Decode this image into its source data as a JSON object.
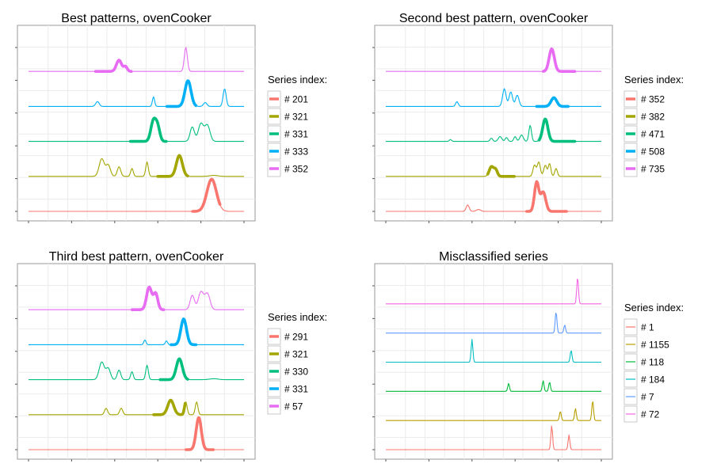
{
  "chart_data": [
    {
      "type": "line",
      "title": "Best patterns, ovenCooker",
      "legend": {
        "title": "Series index:",
        "placement": "right"
      },
      "grid": true,
      "series": [
        {
          "name": "# 201",
          "color": "#F8766D",
          "thick": true,
          "peaks": [
            [
              0.85,
              1.0,
              0.022
            ]
          ],
          "highlight": [
            0.76,
            0.89
          ]
        },
        {
          "name": "# 321",
          "color": "#A3A500",
          "thick": true,
          "peaks": [
            [
              0.34,
              0.55,
              0.012
            ],
            [
              0.37,
              0.35,
              0.01
            ],
            [
              0.42,
              0.3,
              0.008
            ],
            [
              0.48,
              0.25,
              0.006
            ],
            [
              0.55,
              0.45,
              0.006
            ],
            [
              0.7,
              0.65,
              0.014
            ],
            [
              0.86,
              0.03,
              0.02
            ]
          ],
          "highlight": [
            0.6,
            0.74
          ]
        },
        {
          "name": "# 331",
          "color": "#00BF7D",
          "thick": true,
          "peaks": [
            [
              0.58,
              0.65,
              0.012
            ],
            [
              0.6,
              0.4,
              0.01
            ],
            [
              0.76,
              0.45,
              0.01
            ],
            [
              0.8,
              0.55,
              0.012
            ],
            [
              0.83,
              0.5,
              0.012
            ]
          ],
          "highlight": [
            0.47,
            0.64
          ]
        },
        {
          "name": "# 333",
          "color": "#00B0F6",
          "thick": true,
          "peaks": [
            [
              0.32,
              0.15,
              0.008
            ],
            [
              0.58,
              0.3,
              0.005
            ],
            [
              0.74,
              0.8,
              0.014
            ],
            [
              0.82,
              0.12,
              0.008
            ],
            [
              0.91,
              0.55,
              0.007
            ]
          ],
          "highlight": [
            0.64,
            0.78
          ]
        },
        {
          "name": "# 352",
          "color": "#E76BF3",
          "thick": true,
          "peaks": [
            [
              0.42,
              0.35,
              0.012
            ],
            [
              0.45,
              0.15,
              0.008
            ],
            [
              0.73,
              0.75,
              0.007
            ]
          ],
          "highlight": [
            0.31,
            0.48
          ]
        }
      ]
    },
    {
      "type": "line",
      "title": "Second best pattern, ovenCooker",
      "legend": {
        "title": "Series index:",
        "placement": "right"
      },
      "grid": true,
      "series": [
        {
          "name": "# 352",
          "color": "#F8766D",
          "thick": true,
          "peaks": [
            [
              0.38,
              0.2,
              0.007
            ],
            [
              0.43,
              0.06,
              0.01
            ],
            [
              0.7,
              0.9,
              0.01
            ],
            [
              0.73,
              0.6,
              0.012
            ]
          ],
          "highlight": [
            0.65,
            0.84
          ]
        },
        {
          "name": "# 382",
          "color": "#A3A500",
          "thick": true,
          "peaks": [
            [
              0.49,
              0.3,
              0.01
            ],
            [
              0.51,
              0.2,
              0.008
            ],
            [
              0.69,
              0.35,
              0.007
            ],
            [
              0.71,
              0.45,
              0.007
            ],
            [
              0.74,
              0.35,
              0.007
            ],
            [
              0.76,
              0.4,
              0.006
            ],
            [
              0.79,
              0.25,
              0.006
            ]
          ],
          "highlight": [
            0.47,
            0.6
          ]
        },
        {
          "name": "# 471",
          "color": "#00BF7D",
          "thick": true,
          "peaks": [
            [
              0.3,
              0.06,
              0.005
            ],
            [
              0.49,
              0.1,
              0.006
            ],
            [
              0.53,
              0.15,
              0.008
            ],
            [
              0.56,
              0.12,
              0.006
            ],
            [
              0.6,
              0.15,
              0.006
            ],
            [
              0.63,
              0.2,
              0.008
            ],
            [
              0.67,
              0.5,
              0.006
            ],
            [
              0.74,
              0.7,
              0.012
            ]
          ],
          "highlight": [
            0.71,
            0.88
          ]
        },
        {
          "name": "# 508",
          "color": "#00B0F6",
          "thick": true,
          "peaks": [
            [
              0.33,
              0.15,
              0.006
            ],
            [
              0.55,
              0.55,
              0.008
            ],
            [
              0.58,
              0.45,
              0.008
            ],
            [
              0.61,
              0.35,
              0.008
            ],
            [
              0.78,
              0.27,
              0.013
            ]
          ],
          "highlight": [
            0.7,
            0.85
          ]
        },
        {
          "name": "# 735",
          "color": "#E76BF3",
          "thick": true,
          "peaks": [
            [
              0.77,
              0.7,
              0.012
            ]
          ],
          "highlight": [
            0.73,
            0.88
          ]
        }
      ]
    },
    {
      "type": "line",
      "title": "Third best pattern, ovenCooker",
      "legend": {
        "title": "Series index:",
        "placement": "right"
      },
      "grid": true,
      "series": [
        {
          "name": "# 291",
          "color": "#F8766D",
          "thick": true,
          "peaks": [
            [
              0.79,
              1.0,
              0.012
            ]
          ],
          "highlight": [
            0.73,
            0.86
          ]
        },
        {
          "name": "# 321",
          "color": "#A3A500",
          "thick": true,
          "peaks": [
            [
              0.36,
              0.2,
              0.007
            ],
            [
              0.43,
              0.2,
              0.007
            ],
            [
              0.66,
              0.45,
              0.014
            ],
            [
              0.73,
              0.4,
              0.006
            ],
            [
              0.78,
              0.4,
              0.006
            ]
          ],
          "highlight": [
            0.58,
            0.73
          ]
        },
        {
          "name": "# 330",
          "color": "#00BF7D",
          "thick": true,
          "peaks": [
            [
              0.34,
              0.55,
              0.012
            ],
            [
              0.37,
              0.35,
              0.01
            ],
            [
              0.42,
              0.3,
              0.008
            ],
            [
              0.48,
              0.25,
              0.006
            ],
            [
              0.55,
              0.45,
              0.006
            ],
            [
              0.7,
              0.65,
              0.014
            ],
            [
              0.86,
              0.03,
              0.02
            ]
          ],
          "highlight": [
            0.61,
            0.74
          ]
        },
        {
          "name": "# 331",
          "color": "#00B0F6",
          "thick": true,
          "peaks": [
            [
              0.54,
              0.15,
              0.005
            ],
            [
              0.64,
              0.12,
              0.005
            ],
            [
              0.72,
              0.8,
              0.013
            ]
          ],
          "highlight": [
            0.66,
            0.78
          ]
        },
        {
          "name": "# 57",
          "color": "#E76BF3",
          "thick": true,
          "peaks": [
            [
              0.56,
              0.7,
              0.012
            ],
            [
              0.59,
              0.5,
              0.01
            ],
            [
              0.76,
              0.45,
              0.01
            ],
            [
              0.8,
              0.55,
              0.012
            ],
            [
              0.83,
              0.5,
              0.012
            ]
          ],
          "highlight": [
            0.48,
            0.63
          ]
        }
      ]
    },
    {
      "type": "line",
      "title": "Misclassified series",
      "legend": {
        "title": "Series index:",
        "placement": "right"
      },
      "grid": true,
      "series": [
        {
          "name": "# 1",
          "color": "#F8766D",
          "thick": false,
          "peaks": [
            [
              0.77,
              0.9,
              0.004
            ],
            [
              0.85,
              0.55,
              0.004
            ]
          ]
        },
        {
          "name": "# 1155",
          "color": "#B79F00",
          "thick": false,
          "peaks": [
            [
              0.81,
              0.35,
              0.004
            ],
            [
              0.88,
              0.45,
              0.004
            ],
            [
              0.96,
              0.75,
              0.004
            ]
          ]
        },
        {
          "name": "# 118",
          "color": "#00BA38",
          "thick": false,
          "peaks": [
            [
              0.57,
              0.3,
              0.004
            ],
            [
              0.73,
              0.4,
              0.004
            ],
            [
              0.76,
              0.35,
              0.004
            ]
          ]
        },
        {
          "name": "# 184",
          "color": "#00BFC4",
          "thick": false,
          "peaks": [
            [
              0.4,
              0.85,
              0.004
            ],
            [
              0.86,
              0.45,
              0.004
            ]
          ]
        },
        {
          "name": "# 7",
          "color": "#619CFF",
          "thick": false,
          "peaks": [
            [
              0.79,
              0.8,
              0.004
            ],
            [
              0.83,
              0.3,
              0.004
            ]
          ]
        },
        {
          "name": "# 72",
          "color": "#F564E3",
          "thick": false,
          "peaks": [
            [
              0.89,
              1.0,
              0.004
            ]
          ]
        }
      ]
    }
  ]
}
